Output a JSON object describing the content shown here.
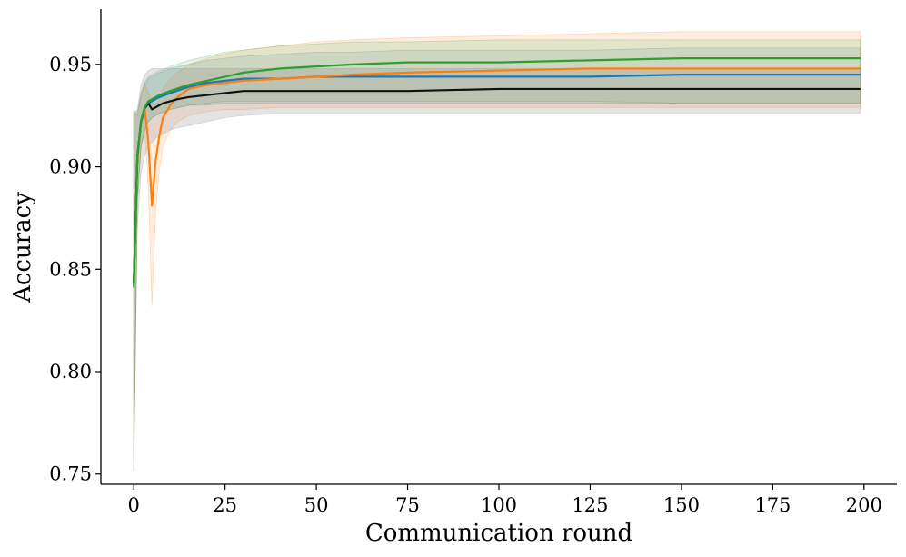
{
  "chart_data": {
    "type": "line",
    "title": "",
    "xlabel": "Communication round",
    "ylabel": "Accuracy",
    "xlim": [
      -9,
      209
    ],
    "ylim": [
      0.745,
      0.977
    ],
    "xticks": [
      0,
      25,
      50,
      75,
      100,
      125,
      150,
      175,
      200
    ],
    "xtick_labels": [
      "0",
      "25",
      "50",
      "75",
      "100",
      "125",
      "150",
      "175",
      "200"
    ],
    "yticks": [
      0.75,
      0.8,
      0.85,
      0.9,
      0.95
    ],
    "ytick_labels": [
      "0.75",
      "0.80",
      "0.85",
      "0.90",
      "0.95"
    ],
    "grid": false,
    "legend": "none",
    "series": [
      {
        "color": "#1f77b4",
        "x": [
          0,
          1,
          2,
          3,
          4,
          5,
          7,
          10,
          15,
          20,
          25,
          30,
          40,
          50,
          60,
          75,
          100,
          125,
          150,
          175,
          199
        ],
        "values": [
          0.843,
          0.905,
          0.922,
          0.928,
          0.931,
          0.932,
          0.934,
          0.936,
          0.939,
          0.941,
          0.942,
          0.943,
          0.943,
          0.944,
          0.944,
          0.944,
          0.944,
          0.944,
          0.945,
          0.945,
          0.945
        ],
        "lower": [
          0.751,
          0.884,
          0.91,
          0.918,
          0.922,
          0.924,
          0.926,
          0.928,
          0.93,
          0.93,
          0.931,
          0.931,
          0.931,
          0.931,
          0.931,
          0.931,
          0.931,
          0.931,
          0.931,
          0.931,
          0.931
        ],
        "upper": [
          0.927,
          0.925,
          0.934,
          0.94,
          0.943,
          0.944,
          0.946,
          0.948,
          0.95,
          0.952,
          0.953,
          0.954,
          0.955,
          0.956,
          0.956,
          0.957,
          0.957,
          0.957,
          0.958,
          0.958,
          0.958
        ]
      },
      {
        "color": "#ff7f0e",
        "x": [
          0,
          1,
          2,
          3,
          4,
          5,
          6,
          7,
          8,
          10,
          12,
          15,
          20,
          25,
          30,
          40,
          50,
          60,
          75,
          100,
          125,
          150,
          175,
          199
        ],
        "values": [
          0.843,
          0.903,
          0.922,
          0.929,
          0.912,
          0.881,
          0.903,
          0.915,
          0.924,
          0.93,
          0.934,
          0.938,
          0.94,
          0.941,
          0.942,
          0.943,
          0.944,
          0.945,
          0.946,
          0.947,
          0.948,
          0.948,
          0.948,
          0.948
        ],
        "lower": [
          0.751,
          0.882,
          0.909,
          0.918,
          0.89,
          0.832,
          0.878,
          0.898,
          0.91,
          0.918,
          0.922,
          0.925,
          0.927,
          0.928,
          0.928,
          0.929,
          0.929,
          0.929,
          0.929,
          0.929,
          0.929,
          0.929,
          0.929,
          0.929
        ],
        "upper": [
          0.927,
          0.925,
          0.936,
          0.941,
          0.936,
          0.931,
          0.93,
          0.933,
          0.938,
          0.943,
          0.946,
          0.95,
          0.953,
          0.955,
          0.957,
          0.959,
          0.961,
          0.962,
          0.963,
          0.964,
          0.965,
          0.966,
          0.966,
          0.966
        ]
      },
      {
        "color": "#2ca02c",
        "x": [
          0,
          1,
          2,
          3,
          4,
          5,
          7,
          10,
          15,
          20,
          25,
          30,
          40,
          50,
          60,
          75,
          100,
          125,
          150,
          175,
          199
        ],
        "values": [
          0.841,
          0.905,
          0.922,
          0.929,
          0.932,
          0.933,
          0.935,
          0.937,
          0.94,
          0.942,
          0.944,
          0.946,
          0.948,
          0.949,
          0.95,
          0.951,
          0.951,
          0.952,
          0.953,
          0.953,
          0.953
        ],
        "lower": [
          0.751,
          0.884,
          0.91,
          0.918,
          0.922,
          0.924,
          0.926,
          0.928,
          0.93,
          0.931,
          0.932,
          0.932,
          0.932,
          0.932,
          0.932,
          0.932,
          0.932,
          0.932,
          0.931,
          0.931,
          0.931
        ],
        "upper": [
          0.928,
          0.927,
          0.936,
          0.941,
          0.944,
          0.945,
          0.947,
          0.949,
          0.952,
          0.954,
          0.956,
          0.957,
          0.959,
          0.96,
          0.961,
          0.961,
          0.962,
          0.962,
          0.962,
          0.962,
          0.962
        ]
      },
      {
        "color": "#111111",
        "x": [
          0,
          1,
          2,
          3,
          4,
          5,
          6,
          7,
          8,
          10,
          12,
          15,
          20,
          25,
          30,
          40,
          50,
          60,
          75,
          100,
          125,
          150,
          175,
          199
        ],
        "values": [
          0.843,
          0.905,
          0.922,
          0.929,
          0.931,
          0.928,
          0.929,
          0.93,
          0.931,
          0.932,
          0.933,
          0.934,
          0.935,
          0.936,
          0.937,
          0.937,
          0.937,
          0.937,
          0.937,
          0.938,
          0.938,
          0.938,
          0.938,
          0.938
        ],
        "lower": [
          0.755,
          0.87,
          0.897,
          0.905,
          0.91,
          0.912,
          0.914,
          0.915,
          0.916,
          0.918,
          0.919,
          0.92,
          0.922,
          0.924,
          0.925,
          0.926,
          0.926,
          0.926,
          0.926,
          0.926,
          0.926,
          0.926,
          0.926,
          0.926
        ],
        "upper": [
          0.925,
          0.928,
          0.94,
          0.945,
          0.947,
          0.948,
          0.948,
          0.948,
          0.948,
          0.948,
          0.948,
          0.948,
          0.948,
          0.948,
          0.948,
          0.948,
          0.948,
          0.948,
          0.948,
          0.948,
          0.948,
          0.948,
          0.948,
          0.948
        ]
      }
    ]
  }
}
